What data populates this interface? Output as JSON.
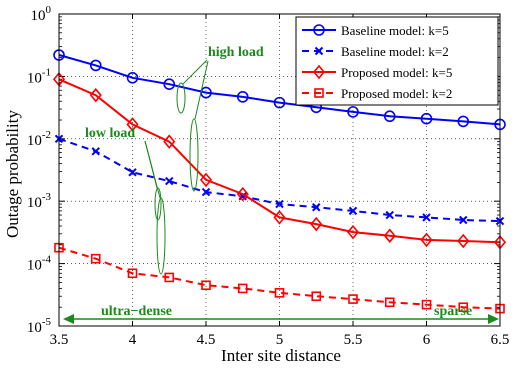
{
  "chart_data": {
    "type": "line",
    "xlabel": "Inter site distance",
    "ylabel": "Outage probability",
    "xlim": [
      3.5,
      6.5
    ],
    "ylim_log10": [
      -5,
      0
    ],
    "yscale": "log",
    "grid": true,
    "legend_position": "top-right",
    "xticks": [
      "3.5",
      "4",
      "4.5",
      "5",
      "5.5",
      "6",
      "6.5"
    ],
    "yticks": [
      {
        "base": "10",
        "exp": "0"
      },
      {
        "base": "10",
        "exp": "-1"
      },
      {
        "base": "10",
        "exp": "-2"
      },
      {
        "base": "10",
        "exp": "-3"
      },
      {
        "base": "10",
        "exp": "-4"
      },
      {
        "base": "10",
        "exp": "-5"
      }
    ],
    "x": [
      3.5,
      3.75,
      4.0,
      4.25,
      4.5,
      4.75,
      5.0,
      5.25,
      5.5,
      5.75,
      6.0,
      6.25,
      6.5
    ],
    "series": [
      {
        "name": "Baseline model: k=5",
        "color": "#0000ff",
        "dash": "solid",
        "marker": "circle",
        "values": [
          0.22,
          0.15,
          0.095,
          0.075,
          0.055,
          0.047,
          0.038,
          0.032,
          0.027,
          0.023,
          0.021,
          0.019,
          0.017
        ]
      },
      {
        "name": "Baseline model: k=2",
        "color": "#0000ff",
        "dash": "dashed",
        "marker": "x",
        "values": [
          0.01,
          0.0063,
          0.0029,
          0.0021,
          0.0014,
          0.0012,
          0.0009,
          0.0008,
          0.0007,
          0.0006,
          0.00055,
          0.0005,
          0.00048
        ]
      },
      {
        "name": "Proposed model: k=5",
        "color": "#ff0000",
        "dash": "solid",
        "marker": "diamond",
        "values": [
          0.09,
          0.05,
          0.017,
          0.009,
          0.0022,
          0.0013,
          0.00055,
          0.00043,
          0.00032,
          0.00028,
          0.00024,
          0.00023,
          0.00022
        ]
      },
      {
        "name": "Proposed model: k=2",
        "color": "#ff0000",
        "dash": "dashed",
        "marker": "square",
        "values": [
          0.00018,
          0.00012,
          7e-05,
          6e-05,
          4.5e-05,
          4e-05,
          3.4e-05,
          3e-05,
          2.7e-05,
          2.4e-05,
          2.2e-05,
          2e-05,
          1.9e-05
        ]
      }
    ],
    "annotations": {
      "high_load": "high load",
      "low_load": "low load",
      "ultra_dense": "ultra−dense",
      "sparse": "sparse"
    },
    "annotation_color": "#1a8a1a"
  }
}
